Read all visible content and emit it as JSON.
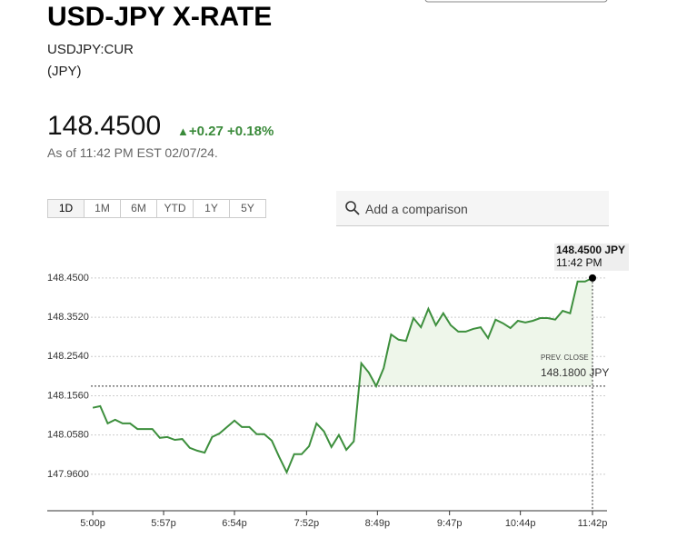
{
  "header": {
    "title": "USD-JPY X-RATE",
    "symbol": "USDJPY:CUR",
    "currency": "(JPY)"
  },
  "quote": {
    "price": "148.4500",
    "change": "+0.27",
    "change_pct": "+0.18%",
    "as_of": "As of 11:42 PM EST 02/07/24."
  },
  "range_buttons": [
    "1D",
    "1M",
    "6M",
    "YTD",
    "1Y",
    "5Y"
  ],
  "search": {
    "placeholder": "Add a comparison"
  },
  "chart_data": {
    "type": "line",
    "x": [
      1020,
      1026,
      1032,
      1038,
      1044,
      1050,
      1056,
      1062,
      1068,
      1074,
      1080,
      1086,
      1092,
      1098,
      1104,
      1110,
      1116,
      1122,
      1128,
      1134,
      1140,
      1146,
      1152,
      1158,
      1164,
      1170,
      1176,
      1182,
      1188,
      1194,
      1200,
      1206,
      1212,
      1218,
      1224,
      1230,
      1236,
      1242,
      1248,
      1254,
      1260,
      1266,
      1272,
      1278,
      1284,
      1290,
      1296,
      1302,
      1308,
      1314,
      1320,
      1326,
      1332,
      1338,
      1344,
      1350,
      1356,
      1362,
      1368,
      1374,
      1380,
      1386,
      1392,
      1398,
      1404,
      1410,
      1416,
      1422
    ],
    "series": [
      {
        "color": "#3d8f3d",
        "values": [
          148.126,
          148.13,
          148.087,
          148.096,
          148.087,
          148.087,
          148.073,
          148.073,
          148.073,
          148.051,
          148.053,
          148.046,
          148.048,
          148.026,
          148.019,
          148.014,
          148.053,
          148.062,
          148.078,
          148.094,
          148.078,
          148.078,
          148.06,
          148.06,
          148.044,
          148.003,
          147.965,
          148.01,
          148.01,
          148.03,
          148.087,
          148.067,
          148.028,
          148.058,
          148.021,
          148.042,
          148.237,
          148.214,
          148.18,
          148.225,
          148.309,
          148.296,
          148.293,
          148.35,
          148.327,
          148.373,
          148.332,
          148.362,
          148.332,
          148.316,
          148.316,
          148.323,
          148.327,
          148.3,
          148.346,
          148.337,
          148.325,
          148.343,
          148.339,
          148.343,
          148.35,
          148.35,
          148.346,
          148.368,
          148.362,
          148.441,
          148.441,
          148.45
        ],
        "value_labels": [
          null,
          null,
          null,
          null,
          null,
          null,
          null,
          null,
          null,
          null,
          null,
          null,
          null,
          null,
          null,
          null,
          null,
          null,
          null,
          null,
          null,
          null,
          null,
          null,
          null,
          null,
          null,
          null,
          null,
          null,
          null,
          null,
          null,
          null,
          null,
          null,
          null,
          null,
          null,
          null,
          null,
          null,
          null,
          null,
          null,
          null,
          null,
          null,
          null,
          null,
          null,
          null,
          null,
          null,
          null,
          null,
          null,
          null,
          null,
          null,
          null,
          null,
          null,
          null,
          null,
          null,
          null,
          "148.4500 JPY"
        ]
      }
    ],
    "last_time_label": "11:42 PM",
    "prev_close": {
      "label": "PREV. CLOSE",
      "value": 148.18,
      "value_label": "148.1800 JPY"
    },
    "xlim": [
      983.4,
      1433.7
    ],
    "xticks": [
      {
        "value": 1020,
        "label": "5:00p"
      },
      {
        "value": 1077,
        "label": "5:57p"
      },
      {
        "value": 1134,
        "label": "6:54p"
      },
      {
        "value": 1192,
        "label": "7:52p"
      },
      {
        "value": 1249,
        "label": "8:49p"
      },
      {
        "value": 1307,
        "label": "9:47p"
      },
      {
        "value": 1364,
        "label": "10:44p"
      },
      {
        "value": 1422,
        "label": "11:42p"
      }
    ],
    "ylim": [
      147.869,
      148.486
    ],
    "yticks": [
      {
        "value": 147.96,
        "label": "147.9600"
      },
      {
        "value": 148.058,
        "label": "148.0580"
      },
      {
        "value": 148.156,
        "label": "148.1560"
      },
      {
        "value": 148.254,
        "label": "148.2540"
      },
      {
        "value": 148.352,
        "label": "148.3520"
      },
      {
        "value": 148.45,
        "label": "148.4500"
      }
    ],
    "grid": true
  }
}
